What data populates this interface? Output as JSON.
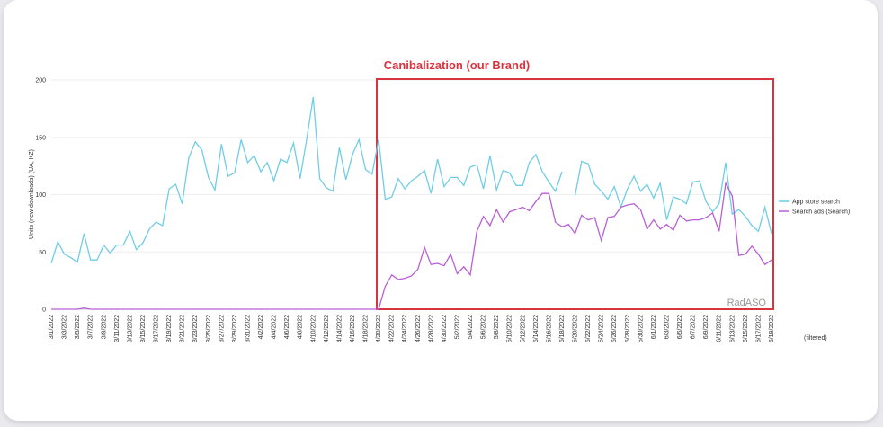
{
  "chart_data": {
    "type": "line",
    "annotation": "Canibalization (our Brand)",
    "y_label": "Units (new downloads) (UA, KZ)",
    "watermark": "RadASO",
    "filter_note": "(filtered)",
    "ylim": [
      0,
      200
    ],
    "yticks": [
      0,
      50,
      100,
      150,
      200
    ],
    "grid": true,
    "legend": "right",
    "categories": [
      "3/1/2022",
      null,
      "3/3/2022",
      null,
      "3/5/2022",
      null,
      "3/7/2022",
      null,
      "3/9/2022",
      null,
      "3/11/2022",
      null,
      "3/13/2022",
      null,
      "3/15/2022",
      null,
      "3/17/2022",
      null,
      "3/19/2022",
      null,
      "3/21/2022",
      null,
      "3/23/2022",
      null,
      "3/25/2022",
      null,
      "3/27/2022",
      null,
      "3/29/2022",
      null,
      "3/31/2022",
      null,
      "4/2/2022",
      null,
      "4/4/2022",
      null,
      "4/6/2022",
      null,
      "4/8/2022",
      null,
      "4/10/2022",
      null,
      "4/12/2022",
      null,
      "4/14/2022",
      null,
      "4/16/2022",
      null,
      "4/18/2022",
      null,
      "4/20/2022",
      null,
      "4/22/2022",
      null,
      "4/24/2022",
      null,
      "4/26/2022",
      null,
      "4/28/2022",
      null,
      "4/30/2022",
      null,
      "5/2/2022",
      null,
      "5/4/2022",
      null,
      "5/6/2022",
      null,
      "5/8/2022",
      null,
      "5/10/2022",
      null,
      "5/12/2022",
      null,
      "5/14/2022",
      null,
      "5/16/2022",
      null,
      "5/18/2022",
      null,
      "5/20/2022",
      null,
      "5/22/2022",
      null,
      "5/24/2022",
      null,
      "5/26/2022",
      null,
      "5/28/2022",
      null,
      "5/30/2022",
      null,
      "6/1/2022",
      null,
      "6/3/2022",
      null,
      "6/5/2022",
      null,
      "6/7/2022",
      null,
      "6/9/2022",
      null,
      "6/11/2022",
      null,
      "6/13/2022",
      null,
      "6/15/2022",
      null,
      "6/17/2022",
      null,
      "6/19/2022"
    ],
    "series": [
      {
        "name": "App store search",
        "color": "#6fcde6",
        "values": [
          40,
          59,
          48,
          45,
          41,
          66,
          43,
          43,
          56,
          49,
          56,
          56,
          68,
          52,
          58,
          70,
          76,
          73,
          105,
          109,
          92,
          132,
          146,
          139,
          115,
          104,
          144,
          116,
          119,
          148,
          128,
          134,
          120,
          128,
          112,
          131,
          128,
          145,
          114,
          148,
          185,
          114,
          106,
          103,
          141,
          113,
          135,
          148,
          122,
          118,
          148,
          96,
          98,
          114,
          105,
          112,
          116,
          121,
          101,
          131,
          107,
          115,
          115,
          108,
          124,
          126,
          105,
          134,
          104,
          121,
          119,
          108,
          108,
          128,
          135,
          120,
          111,
          103,
          120,
          null,
          99,
          129,
          127,
          109,
          103,
          96,
          107,
          89,
          105,
          116,
          103,
          109,
          97,
          110,
          78,
          98,
          96,
          92,
          111,
          112,
          94,
          85,
          92,
          128,
          83,
          87,
          81,
          73,
          68,
          89,
          66
        ]
      },
      {
        "name": "Search ads (Search)",
        "color": "#b85fd6",
        "values": [
          0,
          0,
          0,
          0,
          0,
          1,
          0,
          0,
          0,
          0,
          0,
          0,
          0,
          0,
          0,
          0,
          0,
          0,
          0,
          0,
          0,
          0,
          0,
          0,
          0,
          0,
          0,
          0,
          0,
          0,
          0,
          0,
          0,
          0,
          0,
          0,
          0,
          0,
          0,
          0,
          0,
          0,
          0,
          0,
          0,
          0,
          0,
          0,
          0,
          0,
          0,
          20,
          30,
          26,
          27,
          29,
          35,
          54,
          39,
          40,
          38,
          48,
          31,
          37,
          30,
          68,
          81,
          73,
          87,
          76,
          85,
          87,
          89,
          86,
          94,
          101,
          101,
          76,
          72,
          74,
          66,
          82,
          78,
          80,
          60,
          80,
          81,
          89,
          91,
          92,
          87,
          70,
          78,
          70,
          74,
          69,
          82,
          77,
          78,
          78,
          80,
          84,
          68,
          110,
          99,
          47,
          48,
          55,
          48,
          39,
          43
        ]
      }
    ]
  }
}
